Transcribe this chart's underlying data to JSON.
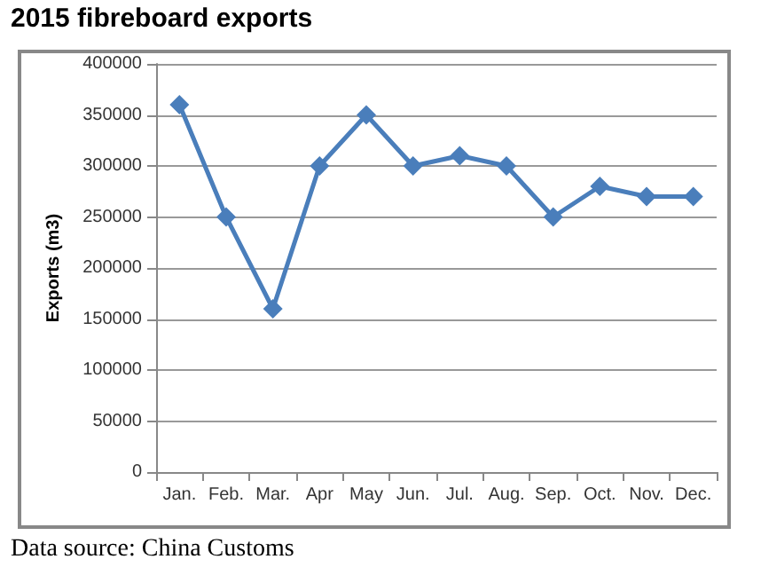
{
  "chart_data": {
    "type": "line",
    "title": "2015 fibreboard exports",
    "ylabel": "Exports (m3)",
    "annotations": [
      "Data source: China Customs"
    ],
    "categories": [
      "Jan.",
      "Feb.",
      "Mar.",
      "Apr",
      "May",
      "Jun.",
      "Jul.",
      "Aug.",
      "Sep.",
      "Oct.",
      "Nov.",
      "Dec."
    ],
    "series": [
      {
        "color": "#4a7ebb",
        "values": [
          360000,
          250000,
          160000,
          300000,
          350000,
          300000,
          310000,
          300000,
          250000,
          280000,
          270000,
          270000
        ]
      }
    ],
    "ylim": [
      0,
      400000
    ],
    "yticks": [
      0,
      50000,
      100000,
      150000,
      200000,
      250000,
      300000,
      350000,
      400000
    ],
    "grid": "y",
    "marker": "diamond",
    "line_style": "solid"
  }
}
